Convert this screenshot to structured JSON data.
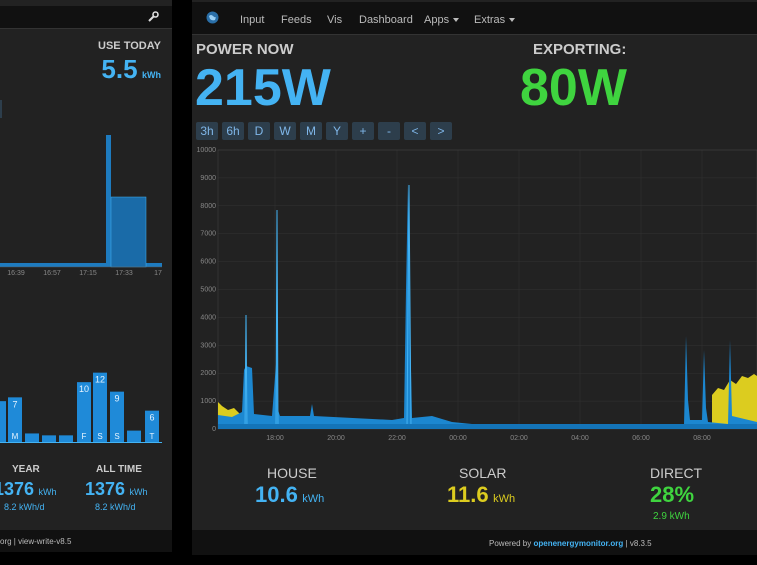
{
  "left_panel": {
    "use_today_label": "USE TODAY",
    "use_today_value": "5.5",
    "use_today_unit": "kWh",
    "power_chart": {
      "ticks": [
        "16:39",
        "16:57",
        "17:15",
        "17:33",
        "17"
      ]
    },
    "daily_bars": [
      {
        "label": "",
        "value": null,
        "value_label": "",
        "height": 0.43
      },
      {
        "label": "M",
        "value": 7,
        "value_label": "7",
        "height": 0.47
      },
      {
        "label": "",
        "value": null,
        "value_label": "",
        "height": 0.09
      },
      {
        "label": "",
        "value": null,
        "value_label": "",
        "height": 0.07
      },
      {
        "label": "",
        "value": null,
        "value_label": "",
        "height": 0.07
      },
      {
        "label": "F",
        "value": 10,
        "value_label": "10",
        "height": 0.63
      },
      {
        "label": "S",
        "value": 12,
        "value_label": "12",
        "height": 0.73
      },
      {
        "label": "S",
        "value": 9,
        "value_label": "9",
        "height": 0.53
      },
      {
        "label": "",
        "value": null,
        "value_label": "",
        "height": 0.12
      },
      {
        "label": "T",
        "value": 6,
        "value_label": "6",
        "height": 0.33
      }
    ],
    "year_label": "YEAR",
    "year_value": "1376",
    "year_unit": "kWh",
    "year_sub": "8.2 kWh/d",
    "alltime_label": "ALL TIME",
    "alltime_value": "1376",
    "alltime_unit": "kWh",
    "alltime_sub": "8.2 kWh/d",
    "footer_text": "org | view-write-v8.5"
  },
  "nav": {
    "items": [
      "Input",
      "Feeds",
      "Vis",
      "Dashboard",
      "Apps",
      "Extras"
    ]
  },
  "main": {
    "power_now_label": "POWER NOW",
    "power_now_value": "215W",
    "exporting_label": "EXPORTING:",
    "exporting_value": "80W",
    "time_buttons": [
      "3h",
      "6h",
      "D",
      "W",
      "M",
      "Y",
      "+",
      "-",
      "<",
      ">"
    ],
    "chart_data": {
      "type": "area",
      "y_ticks": [
        "10000",
        "9000",
        "8000",
        "7000",
        "6000",
        "5000",
        "4000",
        "3000",
        "2000",
        "1000",
        "0"
      ],
      "x_ticks": [
        "18:00",
        "20:00",
        "22:00",
        "00:00",
        "02:00",
        "04:00",
        "06:00",
        "08:00"
      ],
      "ylim": [
        0,
        10000
      ],
      "series": [
        {
          "color": "#44b3f3"
        },
        {
          "color": "#dccc1f"
        }
      ]
    },
    "house_label": "HOUSE",
    "house_value": "10.6",
    "house_unit": "kWh",
    "solar_label": "SOLAR",
    "solar_value": "11.6",
    "solar_unit": "kWh",
    "direct_label": "DIRECT",
    "direct_value": "28%",
    "direct_sub": "2.9 kWh",
    "footer_prefix": "Powered by",
    "footer_link": "openenergymonitor.org",
    "footer_version": "| v8.3.5"
  },
  "colors": {
    "blue": "#44b3f3",
    "green": "#3fd43f",
    "yellow": "#dccc1f"
  }
}
